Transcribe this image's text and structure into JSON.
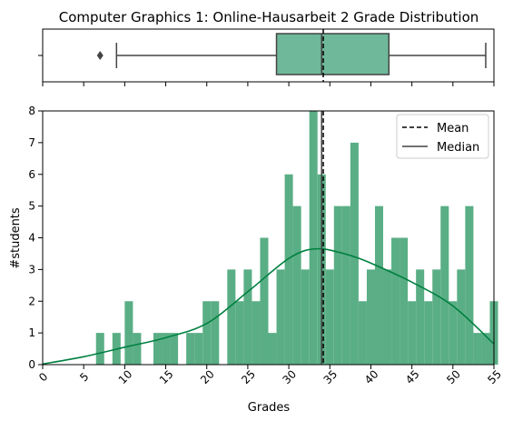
{
  "chart_data": {
    "title": "Computer Graphics 1: Online-Hausarbeit 2 Grade Distribution",
    "type": "bar",
    "xlabel": "Grades",
    "ylabel": "#students",
    "xlim": [
      0,
      55
    ],
    "ylim": [
      0,
      8
    ],
    "xticks": [
      0,
      5,
      10,
      15,
      20,
      25,
      30,
      35,
      40,
      45,
      50,
      55
    ],
    "yticks": [
      0,
      1,
      2,
      3,
      4,
      5,
      6,
      7,
      8
    ],
    "bin_width": 1,
    "bins": [
      {
        "x": 7,
        "count": 1
      },
      {
        "x": 9,
        "count": 1
      },
      {
        "x": 10.5,
        "count": 2
      },
      {
        "x": 11.5,
        "count": 1
      },
      {
        "x": 14,
        "count": 1
      },
      {
        "x": 15,
        "count": 1
      },
      {
        "x": 16,
        "count": 1
      },
      {
        "x": 18,
        "count": 1
      },
      {
        "x": 19,
        "count": 1
      },
      {
        "x": 20,
        "count": 2
      },
      {
        "x": 21,
        "count": 2
      },
      {
        "x": 23,
        "count": 3
      },
      {
        "x": 24,
        "count": 2
      },
      {
        "x": 25,
        "count": 3
      },
      {
        "x": 26,
        "count": 2
      },
      {
        "x": 27,
        "count": 4
      },
      {
        "x": 28,
        "count": 1
      },
      {
        "x": 29,
        "count": 3
      },
      {
        "x": 30,
        "count": 6
      },
      {
        "x": 31,
        "count": 5
      },
      {
        "x": 32,
        "count": 3
      },
      {
        "x": 33,
        "count": 8
      },
      {
        "x": 34,
        "count": 6
      },
      {
        "x": 35,
        "count": 3
      },
      {
        "x": 36,
        "count": 5
      },
      {
        "x": 37,
        "count": 5
      },
      {
        "x": 38,
        "count": 7
      },
      {
        "x": 39,
        "count": 2
      },
      {
        "x": 40,
        "count": 3
      },
      {
        "x": 41,
        "count": 5
      },
      {
        "x": 42,
        "count": 3
      },
      {
        "x": 43,
        "count": 4
      },
      {
        "x": 44,
        "count": 4
      },
      {
        "x": 45,
        "count": 2
      },
      {
        "x": 46,
        "count": 3
      },
      {
        "x": 47,
        "count": 2
      },
      {
        "x": 48,
        "count": 3
      },
      {
        "x": 49,
        "count": 5
      },
      {
        "x": 50,
        "count": 2
      },
      {
        "x": 51,
        "count": 3
      },
      {
        "x": 52,
        "count": 5
      },
      {
        "x": 53,
        "count": 1
      },
      {
        "x": 54,
        "count": 1
      },
      {
        "x": 55,
        "count": 2
      }
    ],
    "kde": {
      "x": [
        0,
        5,
        10,
        15,
        20,
        25,
        28,
        30,
        32,
        34,
        36,
        38,
        40,
        45,
        50,
        55
      ],
      "y": [
        0.02,
        0.25,
        0.55,
        0.85,
        1.3,
        2.3,
        2.95,
        3.35,
        3.6,
        3.65,
        3.55,
        3.4,
        3.2,
        2.6,
        1.85,
        0.65
      ]
    },
    "mean": 34.2,
    "median": 34.0,
    "boxplot": {
      "whisker_low": 9.0,
      "q1": 28.5,
      "median": 34.0,
      "q3": 42.2,
      "whisker_high": 54.0,
      "outliers": [
        7.0
      ]
    },
    "legend": {
      "placement": "top-right",
      "entries": [
        {
          "label": "Mean",
          "style": "dashed"
        },
        {
          "label": "Median",
          "style": "solid"
        }
      ]
    },
    "colors": {
      "bars": "#5aae85",
      "box": "#6fb89a",
      "kde": "#008040",
      "mean": "#000000",
      "median": "#444444"
    }
  }
}
